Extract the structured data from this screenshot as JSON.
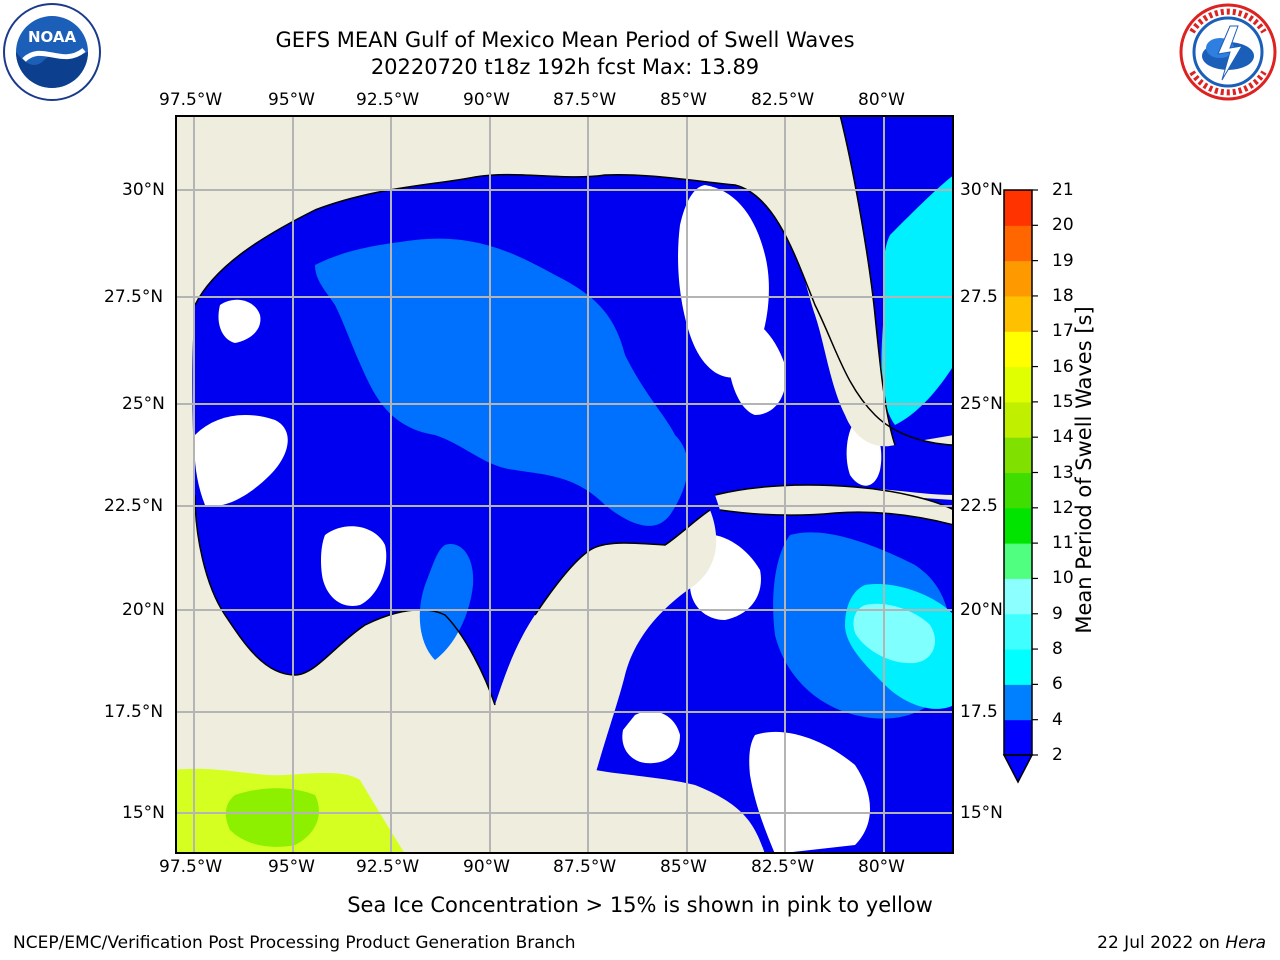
{
  "header": {
    "title_line1": "GEFS MEAN Gulf of Mexico Mean Period of Swell Waves",
    "title_line2": "20220720 t18z 192h fcst   Max: 13.89"
  },
  "logos": {
    "left": {
      "icon": "noaa-logo",
      "text": "NOAA",
      "ring_text": "NATIONAL OCEANIC AND ATMOSPHERIC ADMINISTRATION · U.S. DEPARTMENT OF COMMERCE"
    },
    "right": {
      "icon": "nws-logo",
      "ring_text": "NATIONAL WEATHER SERVICE"
    }
  },
  "map": {
    "lon_ticks": [
      "97.5°W",
      "95°W",
      "92.5°W",
      "90°W",
      "87.5°W",
      "85°W",
      "82.5°W",
      "80°W"
    ],
    "lat_ticks_left": [
      "30°N",
      "27.5°N",
      "25°N",
      "22.5°N",
      "20°N",
      "17.5°N",
      "15°N"
    ],
    "lat_ticks_right": [
      "30°N",
      "27.5",
      "25°N",
      "22.5",
      "20°N",
      "17.5",
      "15°N"
    ],
    "land_color": "#efedde",
    "grid_color": "#b4b4b4"
  },
  "colorbar": {
    "label": "Mean Period of Swell Waves [s]",
    "ticks": [
      "2",
      "4",
      "6",
      "8",
      "9",
      "10",
      "11",
      "12",
      "13",
      "14",
      "15",
      "16",
      "17",
      "18",
      "19",
      "20",
      "21"
    ],
    "colors": [
      "#0000ff",
      "#0080ff",
      "#00ffff",
      "#40ffff",
      "#8cffff",
      "#50ff80",
      "#00e400",
      "#40dd00",
      "#80e000",
      "#c0f000",
      "#e0ff00",
      "#ffff00",
      "#ffc000",
      "#ff9900",
      "#ff6600",
      "#ff3300",
      "#ff0000"
    ]
  },
  "caption": "Sea Ice Concentration > 15% is shown in pink to yellow",
  "footer": {
    "left": "NCEP/EMC/Verification Post Processing Product Generation Branch",
    "right_date": "22 Jul 2022 on ",
    "right_host": "Hera"
  }
}
